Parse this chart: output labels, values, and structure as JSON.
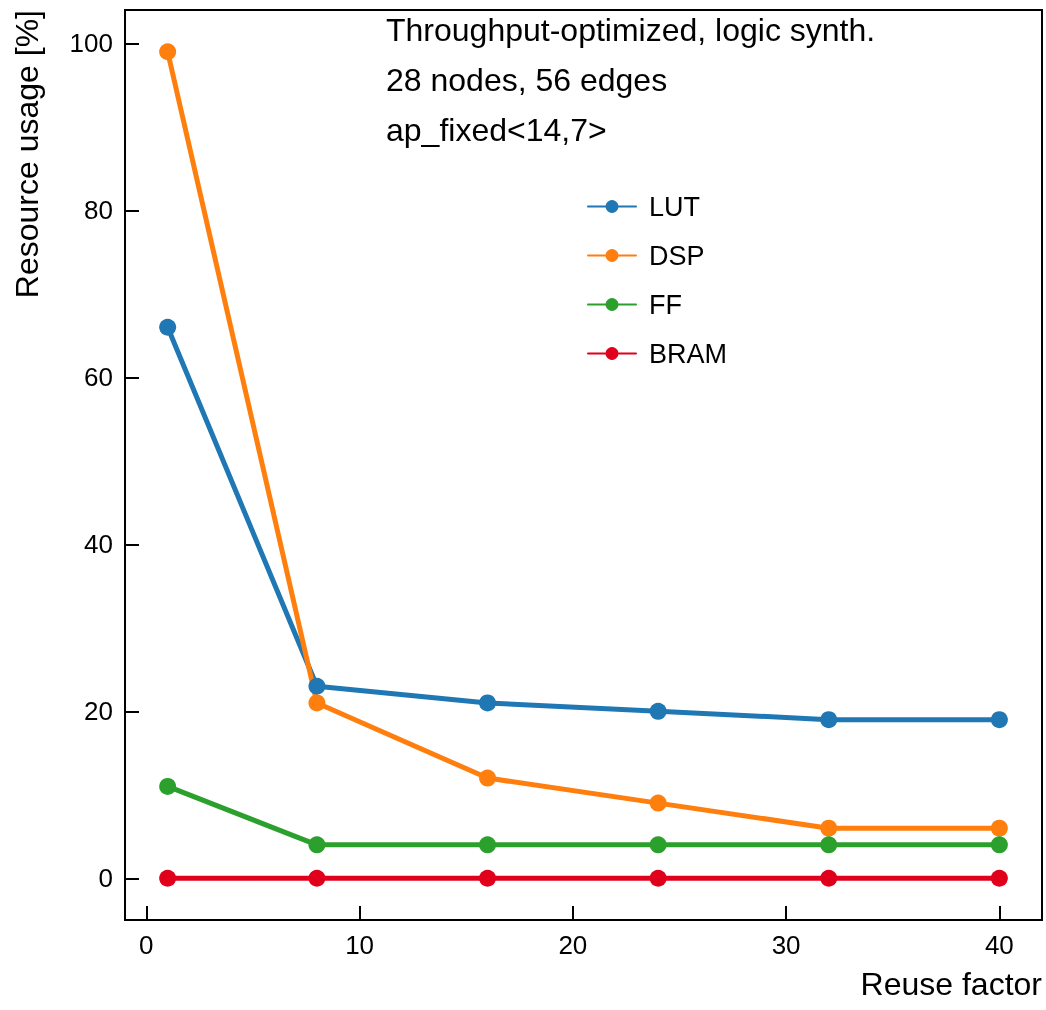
{
  "chart_data": {
    "type": "line",
    "xlabel": "Reuse factor",
    "ylabel": "Resource usage [%]",
    "annotations": [
      "Throughput-optimized, logic synth.",
      "28 nodes, 56 edges",
      "ap_fixed<14,7>"
    ],
    "x": [
      1,
      8,
      16,
      24,
      32,
      40
    ],
    "series": [
      {
        "name": "LUT",
        "color": "#1f77b4",
        "values": [
          66,
          23,
          21,
          20,
          19,
          19
        ]
      },
      {
        "name": "DSP",
        "color": "#ff7f0e",
        "values": [
          99,
          21,
          12,
          9,
          6,
          6
        ]
      },
      {
        "name": "FF",
        "color": "#2ca02c",
        "values": [
          11,
          4,
          4,
          4,
          4,
          4
        ]
      },
      {
        "name": "BRAM",
        "color": "#e0001b",
        "values": [
          0,
          0,
          0,
          0,
          0,
          0
        ]
      }
    ],
    "xlim": [
      -1,
      42
    ],
    "xticks": [
      0,
      10,
      20,
      30,
      40
    ],
    "ylim": [
      -5,
      104
    ],
    "yticks": [
      0,
      20,
      40,
      60,
      80,
      100
    ],
    "grid": false,
    "legend": "top right",
    "marker": "circle",
    "line_style": "solid"
  }
}
